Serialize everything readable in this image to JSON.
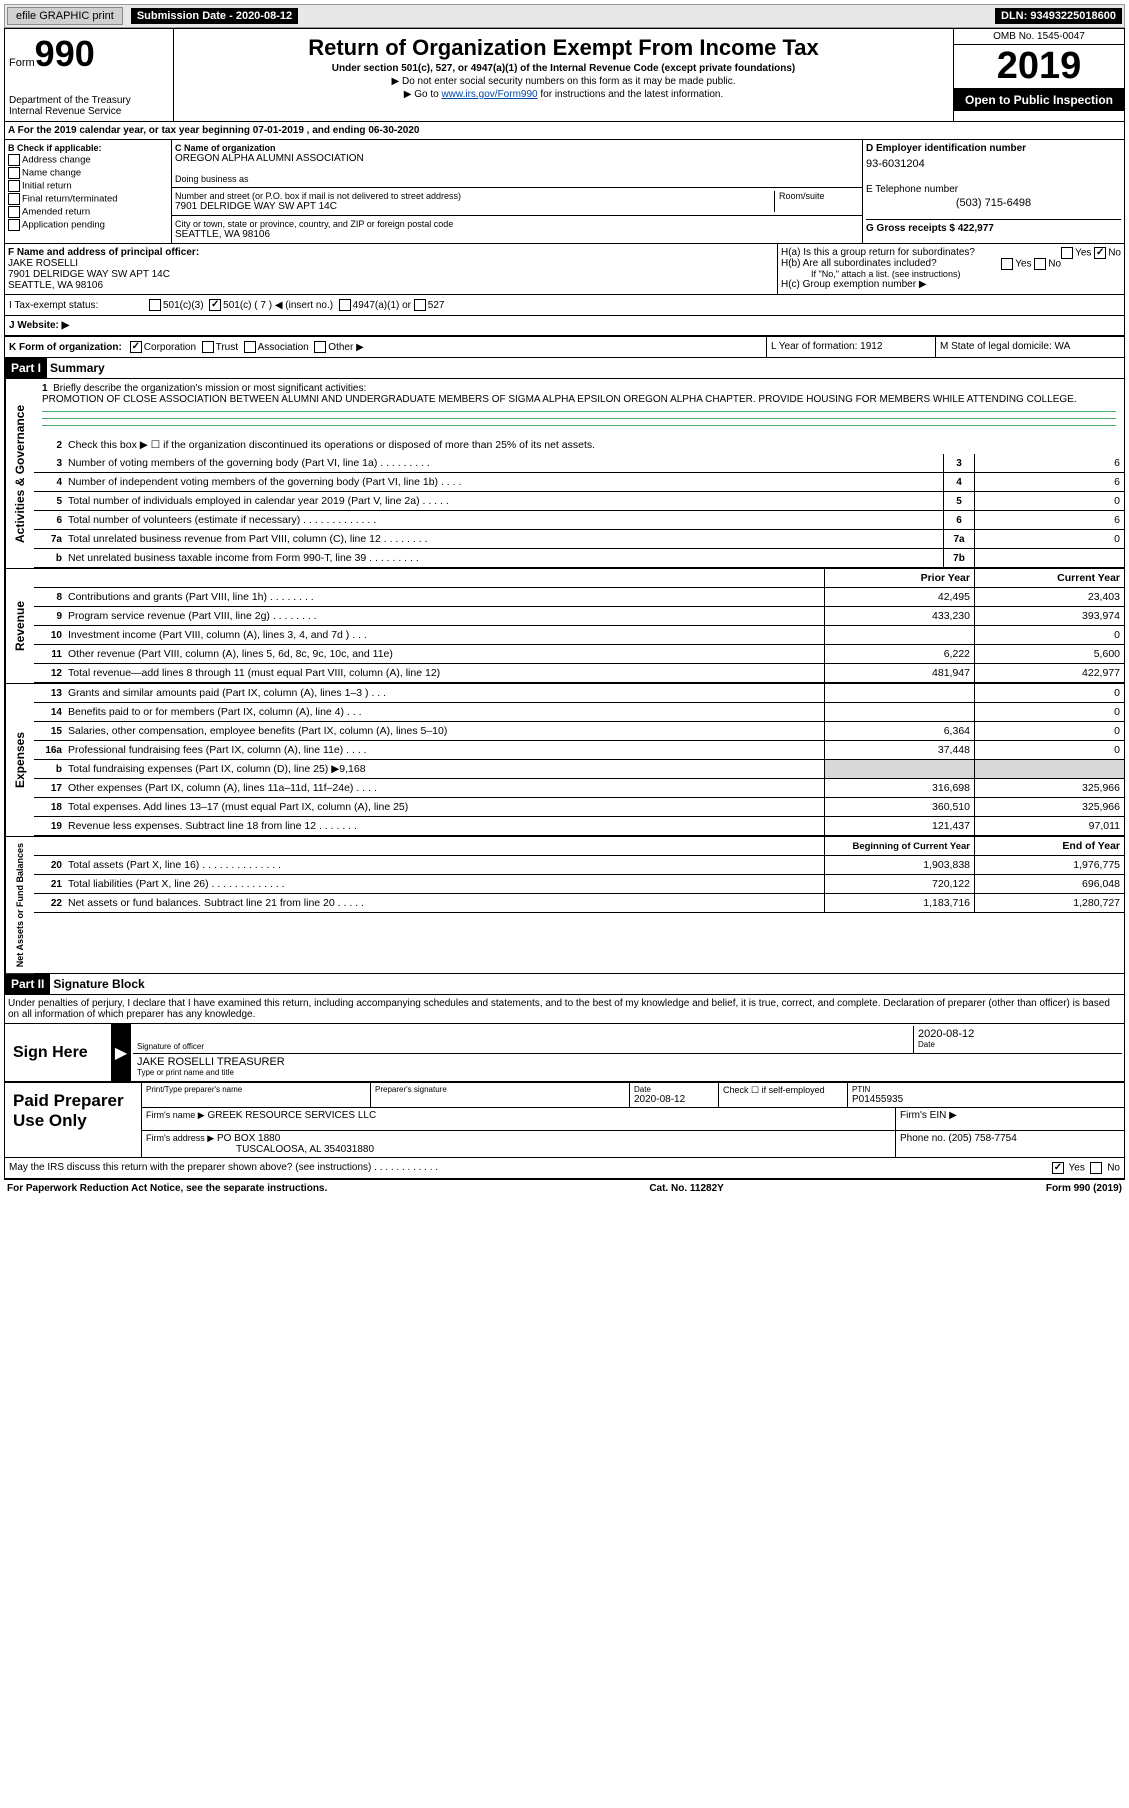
{
  "topbar": {
    "efile_label": "efile GRAPHIC print",
    "sub_date_label": "Submission Date - 2020-08-12",
    "dln": "DLN: 93493225018600"
  },
  "header": {
    "form_label": "Form",
    "form_num": "990",
    "dept": "Department of the Treasury",
    "irs": "Internal Revenue Service",
    "title": "Return of Organization Exempt From Income Tax",
    "sub1": "Under section 501(c), 527, or 4947(a)(1) of the Internal Revenue Code (except private foundations)",
    "sub2": "▶ Do not enter social security numbers on this form as it may be made public.",
    "sub3_pre": "▶ Go to ",
    "sub3_link": "www.irs.gov/Form990",
    "sub3_post": " for instructions and the latest information.",
    "omb": "OMB No. 1545-0047",
    "year": "2019",
    "open": "Open to Public Inspection"
  },
  "period": {
    "text": "A  For the 2019 calendar year, or tax year beginning 07-01-2019    , and ending 06-30-2020"
  },
  "section_b": {
    "header": "B Check if applicable:",
    "items": [
      "Address change",
      "Name change",
      "Initial return",
      "Final return/terminated",
      "Amended return",
      "Application pending"
    ]
  },
  "section_c": {
    "name_label": "C Name of organization",
    "name": "OREGON ALPHA ALUMNI ASSOCIATION",
    "dba_label": "Doing business as",
    "dba": "",
    "addr_label": "Number and street (or P.O. box if mail is not delivered to street address)",
    "suite_label": "Room/suite",
    "addr": "7901 DELRIDGE WAY SW APT 14C",
    "city_label": "City or town, state or province, country, and ZIP or foreign postal code",
    "city": "SEATTLE, WA  98106"
  },
  "section_d": {
    "label": "D Employer identification number",
    "ein": "93-6031204",
    "tel_label": "E Telephone number",
    "tel": "(503) 715-6498",
    "gross_label": "G Gross receipts $ 422,977"
  },
  "section_f": {
    "label": "F  Name and address of principal officer:",
    "name": "JAKE ROSELLI",
    "addr1": "7901 DELRIDGE WAY SW APT 14C",
    "addr2": "SEATTLE, WA  98106"
  },
  "section_h": {
    "ha": "H(a)  Is this a group return for subordinates?",
    "hb": "H(b)  Are all subordinates included?",
    "hb_note": "If \"No,\" attach a list. (see instructions)",
    "hc": "H(c)  Group exemption number ▶",
    "yes": "Yes",
    "no": "No"
  },
  "tax_exempt": {
    "label": "I   Tax-exempt status:",
    "opt1": "501(c)(3)",
    "opt2": "501(c) ( 7 ) ◀ (insert no.)",
    "opt3": "4947(a)(1) or",
    "opt4": "527"
  },
  "website": {
    "label": "J   Website: ▶"
  },
  "section_k": {
    "label": "K Form of organization:",
    "opts": [
      "Corporation",
      "Trust",
      "Association",
      "Other ▶"
    ]
  },
  "section_l": {
    "label": "L Year of formation: 1912"
  },
  "section_m": {
    "label": "M State of legal domicile: WA"
  },
  "part1": {
    "header": "Part I",
    "title": "Summary",
    "vert_activities": "Activities & Governance",
    "vert_revenue": "Revenue",
    "vert_expenses": "Expenses",
    "vert_netassets": "Net Assets or Fund Balances",
    "line1_label": "Briefly describe the organization's mission or most significant activities:",
    "mission": "PROMOTION OF CLOSE ASSOCIATION BETWEEN ALUMNI AND UNDERGRADUATE MEMBERS OF SIGMA ALPHA EPSILON OREGON ALPHA CHAPTER. PROVIDE HOUSING FOR MEMBERS WHILE ATTENDING COLLEGE.",
    "line2": "Check this box ▶ ☐  if the organization discontinued its operations or disposed of more than 25% of its net assets.",
    "lines_gov": [
      {
        "num": "3",
        "label": "Number of voting members of the governing body (Part VI, line 1a)   .   .   .   .   .   .   .   .   .",
        "box": "3",
        "val": "6"
      },
      {
        "num": "4",
        "label": "Number of independent voting members of the governing body (Part VI, line 1b)   .   .   .   .",
        "box": "4",
        "val": "6"
      },
      {
        "num": "5",
        "label": "Total number of individuals employed in calendar year 2019 (Part V, line 2a)   .   .   .   .   .",
        "box": "5",
        "val": "0"
      },
      {
        "num": "6",
        "label": "Total number of volunteers (estimate if necessary)    .   .   .   .   .   .   .   .   .   .   .   .   .",
        "box": "6",
        "val": "6"
      },
      {
        "num": "7a",
        "label": "Total unrelated business revenue from Part VIII, column (C), line 12   .   .   .   .   .   .   .   .",
        "box": "7a",
        "val": "0"
      },
      {
        "num": "b",
        "label": "Net unrelated business taxable income from Form 990-T, line 39    .   .   .   .   .   .   .   .   .",
        "box": "7b",
        "val": ""
      }
    ],
    "prior_header": "Prior Year",
    "current_header": "Current Year",
    "lines_rev": [
      {
        "num": "8",
        "label": "Contributions and grants (Part VIII, line 1h)   .   .   .   .   .   .   .   .",
        "prior": "42,495",
        "curr": "23,403"
      },
      {
        "num": "9",
        "label": "Program service revenue (Part VIII, line 2g)    .   .   .   .   .   .   .   .",
        "prior": "433,230",
        "curr": "393,974"
      },
      {
        "num": "10",
        "label": "Investment income (Part VIII, column (A), lines 3, 4, and 7d )    .   .   .",
        "prior": "",
        "curr": "0"
      },
      {
        "num": "11",
        "label": "Other revenue (Part VIII, column (A), lines 5, 6d, 8c, 9c, 10c, and 11e)",
        "prior": "6,222",
        "curr": "5,600"
      },
      {
        "num": "12",
        "label": "Total revenue—add lines 8 through 11 (must equal Part VIII, column (A), line 12)",
        "prior": "481,947",
        "curr": "422,977"
      }
    ],
    "lines_exp": [
      {
        "num": "13",
        "label": "Grants and similar amounts paid (Part IX, column (A), lines 1–3 )   .   .   .",
        "prior": "",
        "curr": "0"
      },
      {
        "num": "14",
        "label": "Benefits paid to or for members (Part IX, column (A), line 4)    .   .   .",
        "prior": "",
        "curr": "0"
      },
      {
        "num": "15",
        "label": "Salaries, other compensation, employee benefits (Part IX, column (A), lines 5–10)",
        "prior": "6,364",
        "curr": "0"
      },
      {
        "num": "16a",
        "label": "Professional fundraising fees (Part IX, column (A), line 11e)   .   .   .   .",
        "prior": "37,448",
        "curr": "0"
      },
      {
        "num": "b",
        "label": "Total fundraising expenses (Part IX, column (D), line 25) ▶9,168",
        "prior": "shaded",
        "curr": "shaded"
      },
      {
        "num": "17",
        "label": "Other expenses (Part IX, column (A), lines 11a–11d, 11f–24e)   .   .   .   .",
        "prior": "316,698",
        "curr": "325,966"
      },
      {
        "num": "18",
        "label": "Total expenses. Add lines 13–17 (must equal Part IX, column (A), line 25)",
        "prior": "360,510",
        "curr": "325,966"
      },
      {
        "num": "19",
        "label": "Revenue less expenses. Subtract line 18 from line 12 .   .   .   .   .   .   .",
        "prior": "121,437",
        "curr": "97,011"
      }
    ],
    "begin_header": "Beginning of Current Year",
    "end_header": "End of Year",
    "lines_net": [
      {
        "num": "20",
        "label": "Total assets (Part X, line 16) .   .   .   .   .   .   .   .   .   .   .   .   .   .",
        "prior": "1,903,838",
        "curr": "1,976,775"
      },
      {
        "num": "21",
        "label": "Total liabilities (Part X, line 26)  .   .   .   .   .   .   .   .   .   .   .   .   .",
        "prior": "720,122",
        "curr": "696,048"
      },
      {
        "num": "22",
        "label": "Net assets or fund balances. Subtract line 21 from line 20  .   .   .   .   .",
        "prior": "1,183,716",
        "curr": "1,280,727"
      }
    ]
  },
  "part2": {
    "header": "Part II",
    "title": "Signature Block",
    "penalty": "Under penalties of perjury, I declare that I have examined this return, including accompanying schedules and statements, and to the best of my knowledge and belief, it is true, correct, and complete. Declaration of preparer (other than officer) is based on all information of which preparer has any knowledge.",
    "sign_here": "Sign Here",
    "sig_officer": "Signature of officer",
    "sig_date": "2020-08-12",
    "date_label": "Date",
    "officer_name": "JAKE ROSELLI  TREASURER",
    "type_label": "Type or print name and title",
    "paid_prep": "Paid Preparer Use Only",
    "prep_name_label": "Print/Type preparer's name",
    "prep_sig_label": "Preparer's signature",
    "prep_date_label": "Date",
    "prep_date": "2020-08-12",
    "check_self": "Check ☐ if self-employed",
    "ptin_label": "PTIN",
    "ptin": "P01455935",
    "firm_name_label": "Firm's name    ▶",
    "firm_name": "GREEK RESOURCE SERVICES LLC",
    "firm_ein_label": "Firm's EIN ▶",
    "firm_addr_label": "Firm's address ▶",
    "firm_addr1": "PO BOX 1880",
    "firm_addr2": "TUSCALOOSA, AL  354031880",
    "phone_label": "Phone no. (205) 758-7754",
    "discuss": "May the IRS discuss this return with the preparer shown above? (see instructions)     .   .   .   .   .   .   .   .   .   .   .   .",
    "discuss_yes": "Yes",
    "discuss_no": "No"
  },
  "footer": {
    "left": "For Paperwork Reduction Act Notice, see the separate instructions.",
    "center": "Cat. No. 11282Y",
    "right": "Form 990 (2019)"
  }
}
